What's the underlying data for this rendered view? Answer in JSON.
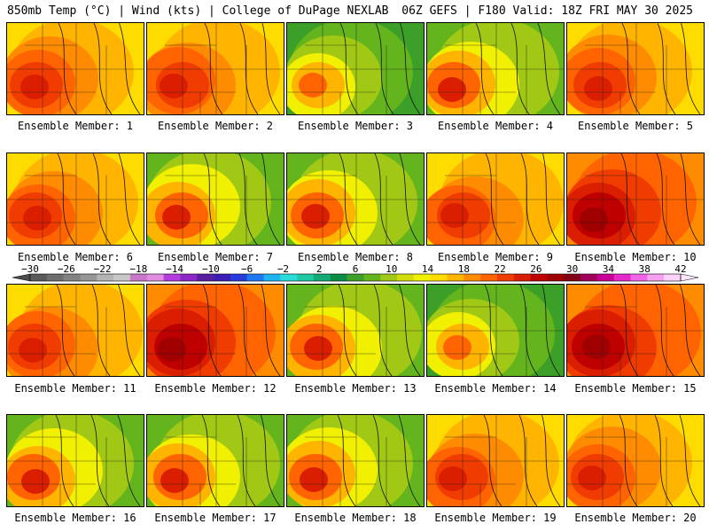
{
  "header": {
    "left": "850mb Temp (°C) | Wind (kts) | College of DuPage NEXLAB",
    "right": "06Z GEFS | F180 Valid: 18Z FRI MAY 30 2025"
  },
  "panels": [
    {
      "label": "Ensemble Member: 1",
      "palette": "warm"
    },
    {
      "label": "Ensemble Member: 2",
      "palette": "warm"
    },
    {
      "label": "Ensemble Member: 3",
      "palette": "cool"
    },
    {
      "label": "Ensemble Member: 4",
      "palette": "mixed"
    },
    {
      "label": "Ensemble Member: 5",
      "palette": "warm"
    },
    {
      "label": "Ensemble Member: 6",
      "palette": "warm"
    },
    {
      "label": "Ensemble Member: 7",
      "palette": "mixed"
    },
    {
      "label": "Ensemble Member: 8",
      "palette": "mixed"
    },
    {
      "label": "Ensemble Member: 9",
      "palette": "warm"
    },
    {
      "label": "Ensemble Member: 10",
      "palette": "hot"
    },
    {
      "label": "Ensemble Member: 11",
      "palette": "warm"
    },
    {
      "label": "Ensemble Member: 12",
      "palette": "hot"
    },
    {
      "label": "Ensemble Member: 13",
      "palette": "mixed"
    },
    {
      "label": "Ensemble Member: 14",
      "palette": "cool"
    },
    {
      "label": "Ensemble Member: 15",
      "palette": "hot"
    },
    {
      "label": "Ensemble Member: 16",
      "palette": "mixed"
    },
    {
      "label": "Ensemble Member: 17",
      "palette": "mixed"
    },
    {
      "label": "Ensemble Member: 18",
      "palette": "mixed"
    },
    {
      "label": "Ensemble Member: 19",
      "palette": "warm"
    },
    {
      "label": "Ensemble Member: 20",
      "palette": "warm"
    }
  ],
  "colorbar": {
    "ticks": [
      "-30",
      "-26",
      "-22",
      "-18",
      "-14",
      "-10",
      "-6",
      "-2",
      "2",
      "6",
      "10",
      "14",
      "18",
      "22",
      "26",
      "30",
      "34",
      "38",
      "42"
    ],
    "colors": [
      "#5a5a5a",
      "#6e6e6e",
      "#828282",
      "#969696",
      "#b4b4b4",
      "#c8c8c8",
      "#c878c8",
      "#e08ce0",
      "#b43cdc",
      "#8c28c8",
      "#5a1ea0",
      "#3c1eb4",
      "#283cdc",
      "#1e78f0",
      "#1eb4f0",
      "#28dcdc",
      "#1ec8a0",
      "#14aa78",
      "#0a8c46",
      "#3ca028",
      "#64b41e",
      "#a0c814",
      "#d2dc0a",
      "#f0f000",
      "#ffdc00",
      "#ffb400",
      "#ff8c00",
      "#ff6400",
      "#f03c00",
      "#dc1e00",
      "#be0000",
      "#a00000",
      "#820014",
      "#a0005a",
      "#c80096",
      "#e628c8",
      "#f064e6",
      "#f8a0f0",
      "#fcd2fa"
    ]
  }
}
